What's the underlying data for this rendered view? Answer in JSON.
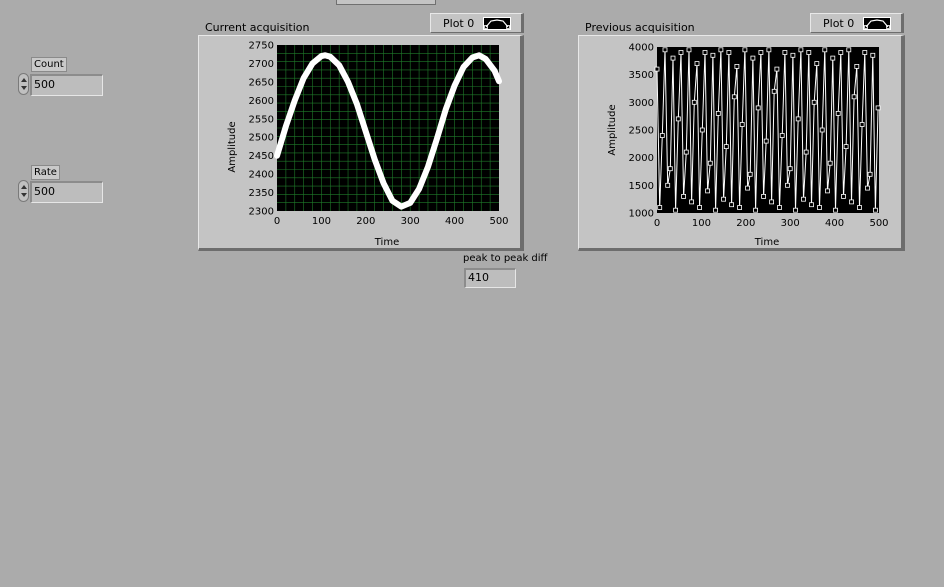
{
  "controls": {
    "count": {
      "label": "Count",
      "value": "500"
    },
    "rate": {
      "label": "Rate",
      "value": "500"
    }
  },
  "indicator": {
    "label": "peak to peak diff",
    "value": "410"
  },
  "graphs": {
    "current": {
      "title": "Current acquisition",
      "legend_label": "Plot 0",
      "xlabel": "Time",
      "ylabel": "Amplitude",
      "plot_bg": "#000000",
      "grid_color": "#1f7a2a",
      "trace_color": "#ffffff"
    },
    "previous": {
      "title": "Previous acquisition",
      "legend_label": "Plot 0",
      "xlabel": "Time",
      "ylabel": "Amplitude",
      "plot_bg": "#000000",
      "trace_color": "#ffffff"
    }
  },
  "chart_data": [
    {
      "type": "line",
      "title": "Current acquisition",
      "xlabel": "Time",
      "ylabel": "Amplitude",
      "xlim": [
        0,
        500
      ],
      "ylim": [
        2300,
        2750
      ],
      "x_ticks": [
        0,
        100,
        200,
        300,
        400,
        500
      ],
      "y_ticks": [
        2300,
        2350,
        2400,
        2450,
        2500,
        2550,
        2600,
        2650,
        2700,
        2750
      ],
      "grid": true,
      "legend": "top-right",
      "series": [
        {
          "name": "Plot 0",
          "x": [
            0,
            20,
            40,
            60,
            80,
            100,
            108,
            120,
            140,
            160,
            180,
            200,
            220,
            240,
            260,
            280,
            300,
            320,
            340,
            360,
            380,
            400,
            420,
            440,
            455,
            470,
            490,
            500
          ],
          "y": [
            2450,
            2530,
            2600,
            2660,
            2700,
            2720,
            2722,
            2718,
            2695,
            2650,
            2590,
            2515,
            2440,
            2375,
            2328,
            2312,
            2322,
            2360,
            2420,
            2495,
            2575,
            2640,
            2690,
            2716,
            2722,
            2712,
            2680,
            2652
          ]
        }
      ]
    },
    {
      "type": "line",
      "title": "Previous acquisition",
      "xlabel": "Time",
      "ylabel": "Amplitude",
      "xlim": [
        0,
        500
      ],
      "ylim": [
        1000,
        4000
      ],
      "x_ticks": [
        0,
        100,
        200,
        300,
        400,
        500
      ],
      "y_ticks": [
        1000,
        1500,
        2000,
        2500,
        3000,
        3500,
        4000
      ],
      "grid": false,
      "legend": "top-right",
      "series": [
        {
          "name": "Plot 0",
          "x": [
            0,
            6,
            12,
            18,
            24,
            30,
            36,
            42,
            48,
            54,
            60,
            66,
            72,
            78,
            84,
            90,
            96,
            102,
            108,
            114,
            120,
            126,
            132,
            138,
            144,
            150,
            156,
            162,
            168,
            174,
            180,
            186,
            192,
            198,
            204,
            210,
            216,
            222,
            228,
            234,
            240,
            246,
            252,
            258,
            264,
            270,
            276,
            282,
            288,
            294,
            300,
            306,
            312,
            318,
            324,
            330,
            336,
            342,
            348,
            354,
            360,
            366,
            372,
            378,
            384,
            390,
            396,
            402,
            408,
            414,
            420,
            426,
            432,
            438,
            444,
            450,
            456,
            462,
            468,
            474,
            480,
            486,
            492,
            498
          ],
          "y": [
            3600,
            1100,
            2400,
            3950,
            1500,
            1800,
            3800,
            1050,
            2700,
            3900,
            1300,
            2100,
            3950,
            1200,
            3000,
            3700,
            1100,
            2500,
            3900,
            1400,
            1900,
            3850,
            1050,
            2800,
            3950,
            1250,
            2200,
            3900,
            1150,
            3100,
            3650,
            1100,
            2600,
            3950,
            1450,
            1700,
            3800,
            1050,
            2900,
            3900,
            1300,
            2300,
            3950,
            1200,
            3200,
            3600,
            1100,
            2400,
            3900,
            1500,
            1800,
            3850,
            1050,
            2700,
            3950,
            1250,
            2100,
            3900,
            1150,
            3000,
            3700,
            1100,
            2500,
            3950,
            1400,
            1900,
            3800,
            1050,
            2800,
            3900,
            1300,
            2200,
            3950,
            1200,
            3100,
            3650,
            1100,
            2600,
            3900,
            1450,
            1700,
            3850,
            1050,
            2900
          ]
        }
      ]
    }
  ]
}
